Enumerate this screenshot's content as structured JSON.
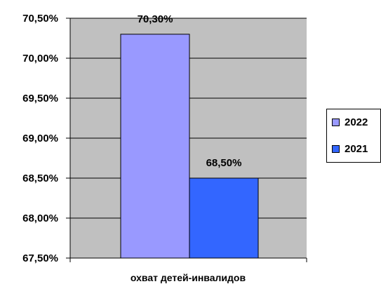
{
  "chart_data": {
    "type": "bar",
    "categories": [
      "охват детей-инвалидов"
    ],
    "series": [
      {
        "name": "2022",
        "values": [
          70.3
        ],
        "color": "#9999ff",
        "value_label": "70,30%"
      },
      {
        "name": "2021",
        "values": [
          68.5
        ],
        "color": "#3366ff",
        "value_label": "68,50%"
      }
    ],
    "title": "",
    "xlabel": "",
    "ylabel": "",
    "ylim": [
      67.5,
      70.5
    ],
    "yticks": [
      67.5,
      68.0,
      68.5,
      69.0,
      69.5,
      70.0,
      70.5
    ],
    "ytick_labels": [
      "67,50%",
      "68,00%",
      "68,50%",
      "69,00%",
      "69,50%",
      "70,00%",
      "70,50%"
    ],
    "grid": true,
    "legend_position": "right",
    "plot_background": "#c0c0c0"
  }
}
